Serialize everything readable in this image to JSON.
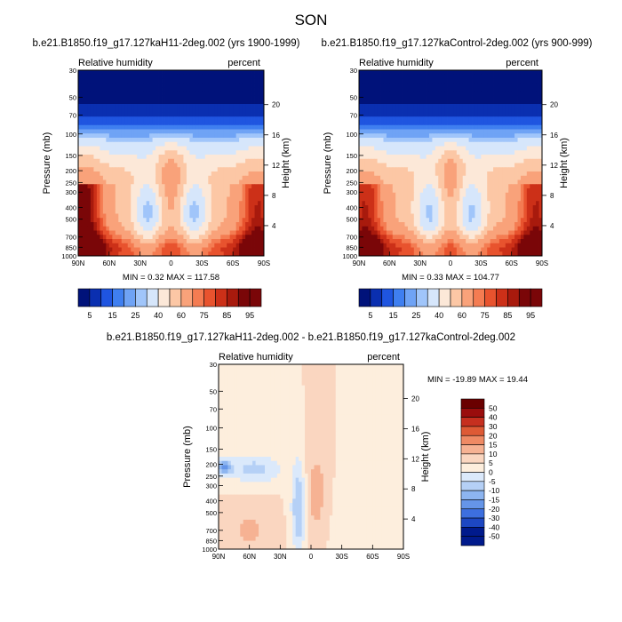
{
  "figure_title": "SON",
  "chart_data": [
    {
      "type": "heatmap",
      "title": "b.e21.B1850.f19_g17.127kaH11-2deg.002 (yrs 1900-1999)",
      "left_label": "Relative humidity",
      "right_label": "percent",
      "ylabel": "Pressure (mb)",
      "y2label": "Height (km)",
      "x_ticks": [
        "90N",
        "60N",
        "30N",
        "0",
        "30S",
        "60S",
        "90S"
      ],
      "y_ticks": [
        30,
        50,
        70,
        100,
        150,
        200,
        250,
        300,
        400,
        500,
        700,
        850,
        1000
      ],
      "height_ticks": [
        20,
        16,
        12,
        8,
        4
      ],
      "min": 0.32,
      "max": 117.58,
      "stats_text": "MIN =   0.32   MAX = 117.58",
      "colorbar_levels": [
        5,
        10,
        15,
        20,
        25,
        30,
        40,
        50,
        60,
        70,
        75,
        80,
        85,
        90,
        95
      ],
      "colorbar_labels": [
        "5",
        "15",
        "25",
        "40",
        "60",
        "75",
        "85",
        "95"
      ]
    },
    {
      "type": "heatmap",
      "title": "b.e21.B1850.f19_g17.127kaControl-2deg.002 (yrs 900-999)",
      "left_label": "Relative humidity",
      "right_label": "percent",
      "ylabel": "Pressure (mb)",
      "y2label": "Height (km)",
      "x_ticks": [
        "90N",
        "60N",
        "30N",
        "0",
        "30S",
        "60S",
        "90S"
      ],
      "y_ticks": [
        30,
        50,
        70,
        100,
        150,
        200,
        250,
        300,
        400,
        500,
        700,
        850,
        1000
      ],
      "height_ticks": [
        20,
        16,
        12,
        8,
        4
      ],
      "min": 0.33,
      "max": 104.77,
      "stats_text": "MIN =   0.33   MAX = 104.77",
      "colorbar_levels": [
        5,
        10,
        15,
        20,
        25,
        30,
        40,
        50,
        60,
        70,
        75,
        80,
        85,
        90,
        95
      ],
      "colorbar_labels": [
        "5",
        "15",
        "25",
        "40",
        "60",
        "75",
        "85",
        "95"
      ]
    },
    {
      "type": "heatmap",
      "title": "b.e21.B1850.f19_g17.127kaH11-2deg.002 - b.e21.B1850.f19_g17.127kaControl-2deg.002",
      "left_label": "Relative humidity",
      "right_label": "percent",
      "ylabel": "Pressure (mb)",
      "y2label": "Height (km)",
      "x_ticks": [
        "90N",
        "60N",
        "30N",
        "0",
        "30S",
        "60S",
        "90S"
      ],
      "y_ticks": [
        30,
        50,
        70,
        100,
        150,
        200,
        250,
        300,
        400,
        500,
        700,
        850,
        1000
      ],
      "height_ticks": [
        20,
        16,
        12,
        8,
        4
      ],
      "min": -19.89,
      "max": 19.44,
      "stats_text": "MIN = -19.89  MAX =  19.44",
      "colorbar_levels": [
        50,
        40,
        30,
        20,
        15,
        10,
        5,
        0,
        -5,
        -10,
        -15,
        -20,
        -30,
        -40,
        -50
      ],
      "colorbar_labels": [
        "50",
        "40",
        "30",
        "20",
        "15",
        "10",
        "5",
        "0",
        "-5",
        "-10",
        "-15",
        "-20",
        "-30",
        "-40",
        "-50"
      ]
    }
  ],
  "colors": {
    "abs_scale": [
      "#00127a",
      "#0a2fb0",
      "#1f55e0",
      "#3f7ff0",
      "#6fa3f5",
      "#a0c5fa",
      "#d6e6fb",
      "#fce8d8",
      "#fcc7a5",
      "#f9a27a",
      "#f47c52",
      "#e8532e",
      "#cc3018",
      "#a81a0d",
      "#7a0608"
    ],
    "diff_scale": [
      "#6a0000",
      "#9a0d0d",
      "#c62f1f",
      "#de5a35",
      "#ef8a64",
      "#f6b293",
      "#fad6c0",
      "#fdeedd",
      "#dbe9fb",
      "#b5d0f6",
      "#8db5f0",
      "#6595e8",
      "#3d6fdf",
      "#1d47c2",
      "#001a8c"
    ]
  }
}
